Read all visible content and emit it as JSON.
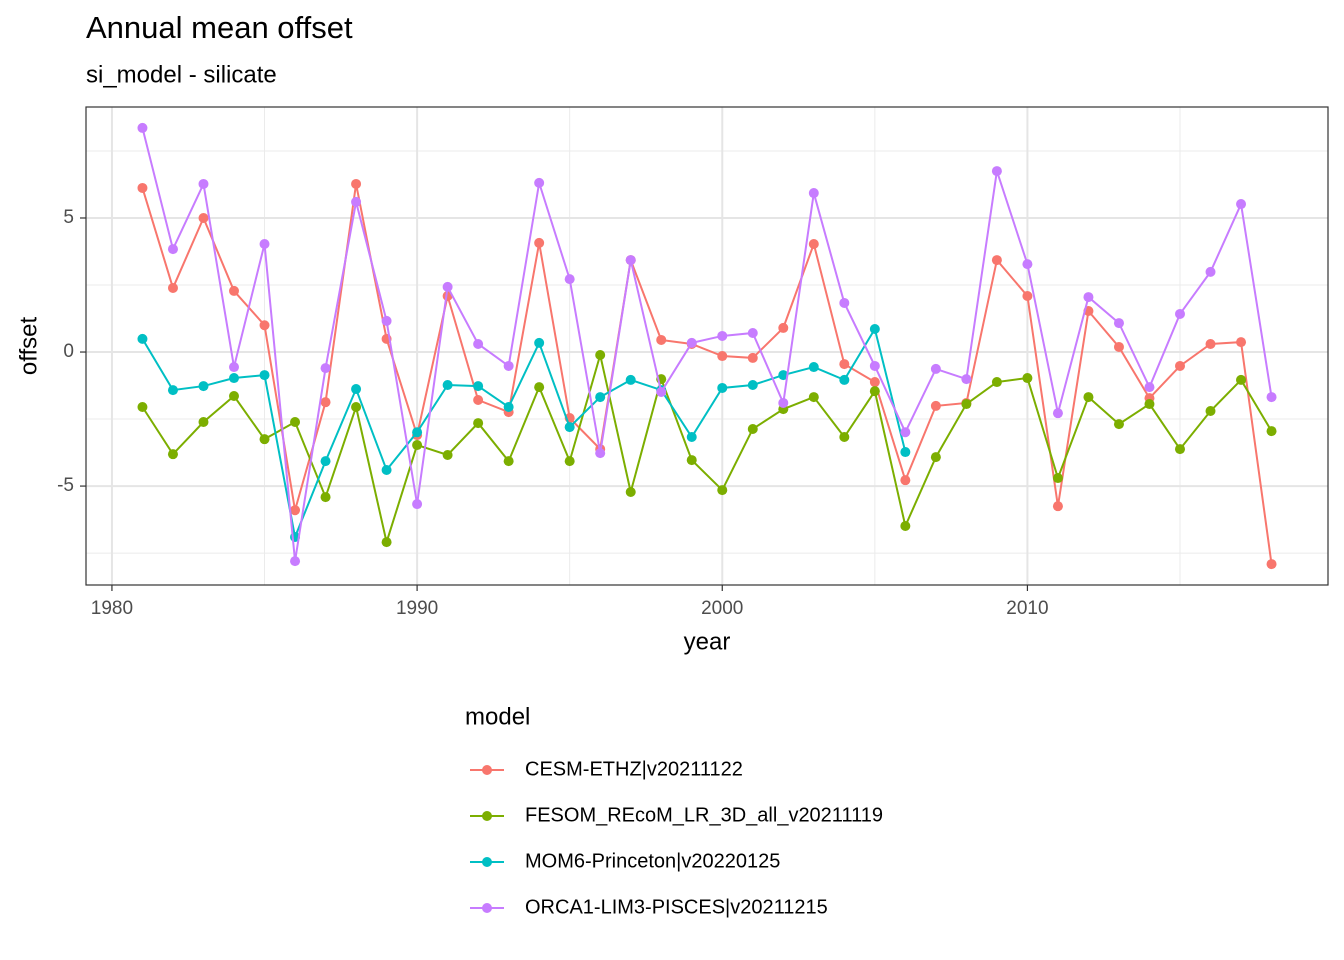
{
  "chart_data": {
    "type": "line",
    "title": "Annual mean offset",
    "subtitle": "si_model - silicate",
    "x_label": "year",
    "y_label": "offset",
    "legend_title": "model",
    "legend_position": "bottom",
    "grid": true,
    "x": [
      1981,
      1982,
      1983,
      1984,
      1985,
      1986,
      1987,
      1988,
      1989,
      1990,
      1991,
      1992,
      1993,
      1994,
      1995,
      1996,
      1997,
      1998,
      1999,
      2000,
      2001,
      2002,
      2003,
      2004,
      2005,
      2006,
      2007,
      2008,
      2009,
      2010,
      2011,
      2012,
      2013,
      2014,
      2015,
      2016,
      2017,
      2018
    ],
    "xlim": [
      1979.15,
      2019.85
    ],
    "xticks": [
      1980,
      1990,
      2000,
      2010
    ],
    "ylim": [
      -8.69,
      9.14
    ],
    "yticks": [
      -5,
      0,
      5
    ],
    "series": [
      {
        "name": "CESM-ETHZ|v20211122",
        "color": "#F8766D",
        "values": [
          6.12,
          2.39,
          5.0,
          2.28,
          1.0,
          -5.9,
          -1.87,
          6.27,
          0.49,
          -3.1,
          2.09,
          -1.79,
          -2.24,
          4.07,
          -2.46,
          -3.62,
          3.43,
          0.45,
          0.3,
          -0.15,
          -0.22,
          0.9,
          4.03,
          -0.45,
          -1.12,
          -4.78,
          -2.01,
          -1.9,
          3.43,
          2.09,
          -5.75,
          1.53,
          0.19,
          -1.72,
          -0.52,
          0.3,
          0.37,
          -7.91
        ]
      },
      {
        "name": "FESOM_REcoM_LR_3D_all_v20211119",
        "color": "#7CAE00",
        "values": [
          -2.05,
          -3.81,
          -2.61,
          -1.64,
          -3.25,
          -2.61,
          -5.41,
          -2.05,
          -7.09,
          -3.47,
          -3.84,
          -2.65,
          -4.07,
          -1.31,
          -4.07,
          -0.11,
          -5.22,
          -1.01,
          -4.03,
          -5.15,
          -2.87,
          -2.13,
          -1.68,
          -3.17,
          -1.46,
          -6.49,
          -3.92,
          -1.94,
          -1.12,
          -0.97,
          -4.7,
          -1.68,
          -2.69,
          -1.94,
          -3.62,
          -2.2,
          -1.04,
          -2.95
        ]
      },
      {
        "name": "MOM6-Princeton|v20220125",
        "color": "#00BFC4",
        "values": [
          0.49,
          -1.42,
          -1.27,
          -0.97,
          -0.86,
          -6.9,
          -4.07,
          -1.38,
          -4.4,
          -2.99,
          -1.23,
          -1.27,
          -2.05,
          0.34,
          -2.8,
          -1.68,
          -1.04,
          -1.42,
          -3.17,
          -1.34,
          -1.23,
          -0.86,
          -0.56,
          -1.04,
          0.86,
          -3.73,
          null,
          null,
          null,
          null,
          null,
          null,
          null,
          null,
          null,
          null,
          null,
          null
        ]
      },
      {
        "name": "ORCA1-LIM3-PISCES|v20211215",
        "color": "#C77CFF",
        "values": [
          8.36,
          3.84,
          6.27,
          -0.56,
          4.03,
          -7.8,
          -0.6,
          5.6,
          1.16,
          -5.67,
          2.43,
          0.3,
          -0.52,
          6.31,
          2.72,
          -3.77,
          3.43,
          -1.49,
          0.34,
          0.6,
          0.71,
          -1.9,
          5.93,
          1.83,
          -0.52,
          -2.99,
          -0.63,
          -1.01,
          6.75,
          3.28,
          -2.28,
          2.05,
          1.08,
          -1.31,
          1.42,
          2.99,
          5.52,
          -1.68
        ]
      }
    ]
  }
}
